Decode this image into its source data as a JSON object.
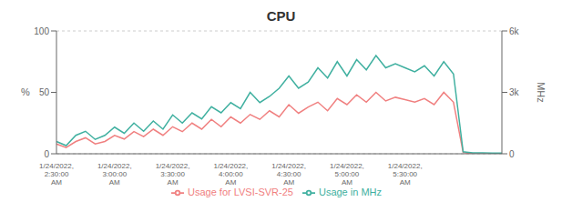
{
  "chart_data": {
    "type": "line",
    "title": "CPU",
    "categories": [
      "1/24/2022,\n2:30:00\nAM",
      null,
      null,
      null,
      null,
      null,
      "1/24/2022,\n3:00:00\nAM",
      null,
      null,
      null,
      null,
      null,
      "1/24/2022,\n3:30:00\nAM",
      null,
      null,
      null,
      null,
      null,
      "1/24/2022,\n4:00:00\nAM",
      null,
      null,
      null,
      null,
      null,
      "1/24/2022,\n4:30:00\nAM",
      null,
      null,
      null,
      null,
      null,
      "1/24/2022,\n5:00:00\nAM",
      null,
      null,
      null,
      null,
      null,
      "1/24/2022,\n5:30:00\nAM",
      null,
      null,
      null,
      null,
      null,
      null,
      null,
      null,
      null,
      null
    ],
    "series": [
      {
        "name": "Usage for LVSI-SVR-25",
        "color": "#f08080",
        "values": [
          8,
          5,
          10,
          13,
          8,
          10,
          15,
          12,
          18,
          14,
          20,
          15,
          22,
          18,
          25,
          20,
          28,
          22,
          30,
          25,
          32,
          28,
          35,
          30,
          40,
          33,
          38,
          42,
          35,
          45,
          40,
          48,
          42,
          50,
          43,
          46,
          44,
          42,
          45,
          40,
          50,
          42,
          1,
          0,
          0,
          0,
          0
        ]
      },
      {
        "name": "Usage in MHz",
        "color": "#40b0a0",
        "axis": "y2",
        "values": [
          600,
          400,
          900,
          1100,
          700,
          900,
          1300,
          1000,
          1500,
          1100,
          1600,
          1200,
          1900,
          1500,
          2000,
          1700,
          2300,
          2000,
          2500,
          2200,
          3000,
          2500,
          2800,
          3200,
          3800,
          3200,
          3500,
          4200,
          3700,
          4500,
          3800,
          4600,
          4100,
          4800,
          4200,
          4400,
          4200,
          4000,
          4300,
          3800,
          4500,
          3900,
          100,
          50,
          50,
          30,
          30
        ]
      }
    ],
    "ylabel": "%",
    "y2label": "MHz",
    "ylim": [
      0,
      100
    ],
    "yticks": [
      0,
      50,
      100
    ],
    "y2lim": [
      0,
      6000
    ],
    "y2ticks": [
      0,
      {
        "value": 3000,
        "label": "3k"
      },
      {
        "value": 6000,
        "label": "6k"
      }
    ],
    "grid": true,
    "legend": "bottom"
  }
}
